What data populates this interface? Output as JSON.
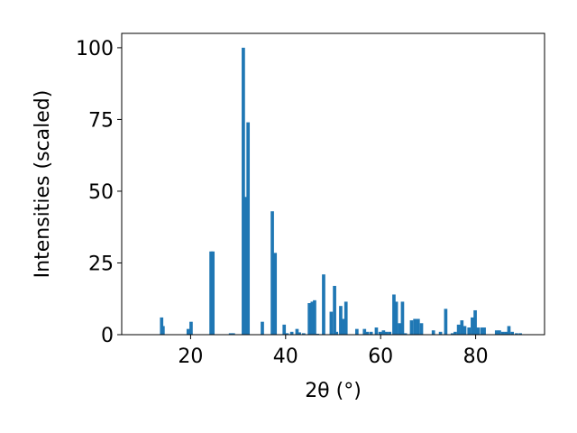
{
  "chart_data": {
    "type": "bar",
    "xlabel": "2θ (°)",
    "ylabel": "Intensities (scaled)",
    "xlim": [
      5.5,
      94.5
    ],
    "ylim": [
      0,
      105
    ],
    "xticks": [
      20,
      40,
      60,
      80
    ],
    "yticks": [
      0,
      25,
      50,
      75,
      100
    ],
    "grid": false,
    "bar_color": "#1f77b4",
    "bar_width": 0.7,
    "x": [
      13.9,
      14.2,
      19.5,
      20.1,
      24.3,
      24.7,
      28.4,
      29.0,
      31.1,
      31.5,
      32.1,
      35.1,
      37.2,
      37.8,
      39.7,
      40.3,
      41.3,
      42.4,
      42.9,
      43.8,
      45.0,
      45.6,
      46.1,
      46.7,
      48.0,
      49.6,
      50.3,
      50.7,
      51.6,
      52.1,
      52.7,
      55.0,
      56.6,
      57.2,
      58.0,
      59.1,
      59.9,
      60.6,
      61.2,
      61.9,
      62.8,
      63.3,
      64.0,
      64.6,
      65.2,
      66.5,
      67.2,
      67.9,
      68.6,
      71.1,
      72.6,
      73.7,
      75.1,
      75.7,
      76.4,
      77.1,
      77.7,
      78.6,
      79.3,
      79.9,
      80.5,
      81.3,
      81.8,
      84.4,
      85.0,
      85.7,
      86.4,
      87.0,
      87.7,
      88.6,
      89.4
    ],
    "values": [
      6.0,
      3.0,
      2.0,
      4.5,
      29.0,
      29.0,
      0.5,
      0.5,
      100.0,
      48.0,
      74.0,
      4.5,
      43.0,
      28.5,
      3.5,
      0.5,
      1.0,
      2.0,
      0.8,
      0.5,
      11.0,
      11.5,
      12.0,
      0.3,
      21.0,
      8.0,
      17.0,
      1.0,
      10.0,
      5.5,
      11.5,
      2.0,
      2.0,
      1.0,
      1.0,
      2.5,
      1.0,
      1.5,
      1.0,
      1.0,
      14.0,
      11.5,
      4.0,
      11.5,
      0.5,
      5.0,
      5.5,
      5.5,
      4.0,
      1.5,
      1.0,
      9.0,
      0.5,
      1.0,
      3.5,
      5.0,
      3.0,
      2.5,
      6.0,
      8.5,
      2.5,
      2.5,
      2.5,
      1.5,
      1.5,
      1.0,
      1.0,
      3.0,
      1.0,
      0.5,
      0.5
    ]
  }
}
